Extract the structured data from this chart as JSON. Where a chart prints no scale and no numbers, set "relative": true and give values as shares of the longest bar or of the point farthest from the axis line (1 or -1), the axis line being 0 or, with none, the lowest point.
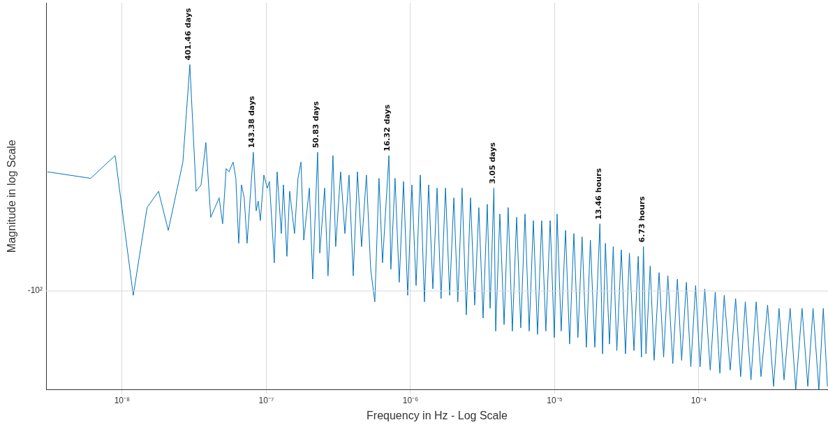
{
  "chart_data": {
    "type": "line",
    "xlabel": "Frequency in Hz - Log Scale",
    "ylabel": "Magnitude in log Scale",
    "relative": true,
    "log": "x",
    "grid": true,
    "legend": false,
    "marker": "none",
    "line_style": "solid",
    "xlim": [
      2.97e-09,
      0.000787
    ],
    "xticks": [
      {
        "value": 1e-08,
        "label": "10⁻⁸"
      },
      {
        "value": 1e-07,
        "label": "10⁻⁷"
      },
      {
        "value": 1e-06,
        "label": "10⁻⁶"
      },
      {
        "value": 1e-05,
        "label": "10⁻⁵"
      },
      {
        "value": 0.0001,
        "label": "10⁻⁴"
      }
    ],
    "x": [
      3.03e-09,
      6.05e-09,
      8.95e-09,
      1.195e-08,
      1.49e-08,
      1.79e-08,
      2.09e-08,
      2.64e-08,
      2.95e-08,
      3.26e-08,
      3.53e-08,
      3.81e-08,
      4.12e-08,
      4.41e-08,
      4.71e-08,
      4.98e-08,
      5.27e-08,
      5.51e-08,
      5.89e-08,
      6.15e-08,
      6.44e-08,
      6.73e-08,
      7.03e-08,
      7.36e-08,
      8.13e-08,
      8.51e-08,
      8.79e-08,
      9.1e-08,
      9.62e-08,
      1.017e-07,
      1.052e-07,
      1.137e-07,
      1.189e-07,
      1.271e-07,
      1.315e-07,
      1.39e-07,
      1.453e-07,
      1.57e-07,
      1.66e-07,
      1.74e-07,
      1.82e-07,
      1.99e-07,
      2.1e-07,
      2.27e-07,
      2.35e-07,
      2.54e-07,
      2.68e-07,
      2.9e-07,
      3.03e-07,
      3.28e-07,
      3.51e-07,
      3.75e-07,
      4.01e-07,
      4.29e-07,
      4.58e-07,
      4.95e-07,
      5.3e-07,
      5.66e-07,
      6.05e-07,
      6.4e-07,
      7.09e-07,
      7.31e-07,
      7.82e-07,
      8.36e-07,
      8.95e-07,
      9.57e-07,
      1.023e-06,
      1.094e-06,
      1.17e-06,
      1.25e-06,
      1.337e-06,
      1.43e-06,
      1.53e-06,
      1.63e-06,
      1.75e-06,
      1.87e-06,
      2e-06,
      2.13e-06,
      2.28e-06,
      2.44e-06,
      2.61e-06,
      2.79e-06,
      2.98e-06,
      3.19e-06,
      3.41e-06,
      3.57e-06,
      3.79e-06,
      3.9e-06,
      4.17e-06,
      4.46e-06,
      4.76e-06,
      5.09e-06,
      5.45e-06,
      5.82e-06,
      6.23e-06,
      6.66e-06,
      7.12e-06,
      7.61e-06,
      8.13e-06,
      8.69e-06,
      9.31e-06,
      9.95e-06,
      1.04e-05,
      1.11e-05,
      1.19e-05,
      1.27e-05,
      1.36e-05,
      1.45e-05,
      1.55e-05,
      1.66e-05,
      1.77e-05,
      1.9e-05,
      2.06e-05,
      2.15e-05,
      2.25e-05,
      2.4e-05,
      2.55e-05,
      2.7e-05,
      2.9e-05,
      3.1e-05,
      3.3e-05,
      3.55e-05,
      3.8e-05,
      4e-05,
      4.13e-05,
      4.3e-05,
      4.6e-05,
      4.9e-05,
      5.3e-05,
      5.7e-05,
      6.1e-05,
      6.6e-05,
      7.1e-05,
      7.6e-05,
      8.2e-05,
      8.8e-05,
      9.5e-05,
      0.000102,
      0.00011,
      0.00012,
      0.00013,
      0.00014,
      0.00015,
      0.000165,
      0.00018,
      0.000195,
      0.00021,
      0.00023,
      0.00025,
      0.00027,
      0.0003,
      0.00033,
      0.00036,
      0.00039,
      0.00043,
      0.00047,
      0.00052,
      0.00057,
      0.00062,
      0.00068,
      0.00073,
      0.00078
    ],
    "series": [
      {
        "color": "#0072bd",
        "values": [
          0.67,
          0.65,
          0.72,
          0.29,
          0.56,
          0.61,
          0.49,
          0.7,
          1,
          0.61,
          0.63,
          0.76,
          0.53,
          0.56,
          0.59,
          0.51,
          0.68,
          0.67,
          0.7,
          0.65,
          0.45,
          0.63,
          0.59,
          0.45,
          0.73,
          0.55,
          0.58,
          0.52,
          0.66,
          0.62,
          0.64,
          0.39,
          0.67,
          0.48,
          0.63,
          0.41,
          0.61,
          0.48,
          0.65,
          0.7,
          0.46,
          0.62,
          0.34,
          0.73,
          0.42,
          0.62,
          0.35,
          0.72,
          0.44,
          0.67,
          0.48,
          0.66,
          0.35,
          0.67,
          0.44,
          0.66,
          0.37,
          0.27,
          0.65,
          0.39,
          0.72,
          0.37,
          0.65,
          0.33,
          0.64,
          0.29,
          0.63,
          0.32,
          0.66,
          0.27,
          0.63,
          0.31,
          0.62,
          0.28,
          0.62,
          0.29,
          0.59,
          0.27,
          0.62,
          0.23,
          0.59,
          0.26,
          0.56,
          0.22,
          0.57,
          0.25,
          0.62,
          0.18,
          0.54,
          0.2,
          0.56,
          0.18,
          0.53,
          0.19,
          0.54,
          0.18,
          0.52,
          0.17,
          0.52,
          0.18,
          0.52,
          0.16,
          0.54,
          0.18,
          0.49,
          0.14,
          0.48,
          0.16,
          0.47,
          0.13,
          0.46,
          0.13,
          0.51,
          0.11,
          0.45,
          0.14,
          0.44,
          0.12,
          0.43,
          0.11,
          0.42,
          0.12,
          0.41,
          0.1,
          0.44,
          0.11,
          0.38,
          0.09,
          0.36,
          0.1,
          0.35,
          0.08,
          0.34,
          0.09,
          0.33,
          0.07,
          0.32,
          0.07,
          0.31,
          0.06,
          0.3,
          0.05,
          0.29,
          0.06,
          0.28,
          0.04,
          0.27,
          0.03,
          0.27,
          0.04,
          0.26,
          0.01,
          0.25,
          0.03,
          0.25,
          0,
          0.25,
          0.01,
          0.25,
          0,
          0.25,
          0.01
        ]
      }
    ],
    "annotations": [
      "-10²",
      {
        "text": "401.46 days",
        "x": 2.95e-08,
        "y": 1
      },
      {
        "text": "143.38 days",
        "x": 8.13e-08,
        "y": 0.73
      },
      {
        "text": "50.83 days",
        "x": 2.27e-07,
        "y": 0.73
      },
      {
        "text": "16.32 days",
        "x": 7.09e-07,
        "y": 0.72
      },
      {
        "text": "3.05 days",
        "x": 3.79e-06,
        "y": 0.62
      },
      {
        "text": "13.46 hours",
        "x": 2.06e-05,
        "y": 0.51
      },
      {
        "text": "6.73 hours",
        "x": 4.13e-05,
        "y": 0.44
      }
    ]
  }
}
